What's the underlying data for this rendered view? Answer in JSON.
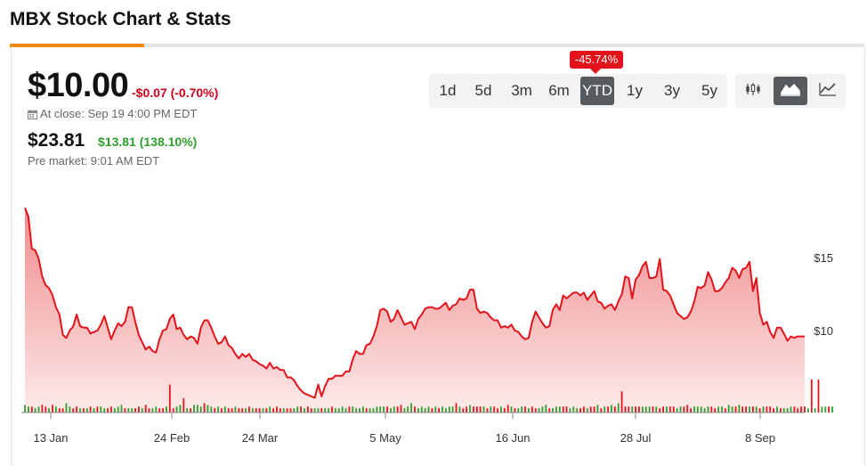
{
  "page": {
    "title": "MBX Stock Chart & Stats"
  },
  "quote": {
    "price": "$10.00",
    "change": "-$0.07 (-0.70%)",
    "close_time": "At close: Sep 19 4:00 PM EDT",
    "pre_price": "$23.81",
    "pre_change": "$13.81 (138.10%)",
    "pre_time": "Pre market: 9:01 AM EDT"
  },
  "range_selector": {
    "options": [
      "1d",
      "5d",
      "3m",
      "6m",
      "YTD",
      "1y",
      "3y",
      "5y"
    ],
    "selected": "YTD",
    "selected_change": "-45.74%"
  },
  "chart_types": [
    {
      "icon": "candlestick-icon",
      "active": false
    },
    {
      "icon": "area-chart-icon",
      "active": true
    },
    {
      "icon": "line-chart-icon",
      "active": false
    }
  ],
  "colors": {
    "accent": "#f0890c",
    "negative": "#d0021b",
    "positive": "#2e9e2e",
    "line": "#e3131b",
    "area_top": "#f08a8a",
    "area_bottom": "#fdeaea",
    "active_button": "#555b5e"
  },
  "chart_data": {
    "type": "area",
    "xlabel": "",
    "ylabel": "",
    "x_tick_labels": [
      "13 Jan",
      "24 Feb",
      "24 Mar",
      "5 May",
      "16 Jun",
      "28 Jul",
      "8 Sep"
    ],
    "y_tick_labels": [
      "$15",
      "$10"
    ],
    "y_ticks": [
      15,
      10
    ],
    "ylim": [
      5.1,
      18.8
    ],
    "grid": false,
    "legend": "none",
    "price_series": [
      18.4,
      17.8,
      15.6,
      15.5,
      14.9,
      13.7,
      13.1,
      12.9,
      12.4,
      11.6,
      11.1,
      9.7,
      9.5,
      10.0,
      10.3,
      11.1,
      10.3,
      10.2,
      10.2,
      9.8,
      9.9,
      10.0,
      10.4,
      11.0,
      10.2,
      9.4,
      10.0,
      10.5,
      10.3,
      10.6,
      11.6,
      11.6,
      10.6,
      9.7,
      9.2,
      8.7,
      8.9,
      8.6,
      8.5,
      9.4,
      10.0,
      10.1,
      10.8,
      11.1,
      10.1,
      10.2,
      9.7,
      9.4,
      9.6,
      9.5,
      9.1,
      10.2,
      10.7,
      10.7,
      10.2,
      9.6,
      9.1,
      9.2,
      9.6,
      9.0,
      8.8,
      8.4,
      8.1,
      8.4,
      8.2,
      8.4,
      8.0,
      7.9,
      7.7,
      7.6,
      7.4,
      7.8,
      7.4,
      7.5,
      7.3,
      7.3,
      6.8,
      6.8,
      6.6,
      6.2,
      5.9,
      5.7,
      5.6,
      5.5,
      5.4,
      6.3,
      5.5,
      6.2,
      6.7,
      6.7,
      6.9,
      6.9,
      6.9,
      7.2,
      7.2,
      8.0,
      8.6,
      8.4,
      8.4,
      9.0,
      9.1,
      9.6,
      10.3,
      11.4,
      11.5,
      11.3,
      10.6,
      10.8,
      11.4,
      10.9,
      10.4,
      10.5,
      10.6,
      10.1,
      10.8,
      11.1,
      11.5,
      11.6,
      11.6,
      11.5,
      11.5,
      11.7,
      11.9,
      11.4,
      11.7,
      11.8,
      12.2,
      12.1,
      12.2,
      12.8,
      12.8,
      11.5,
      11.2,
      11.3,
      11.2,
      10.9,
      10.7,
      10.7,
      10.2,
      10.3,
      10.2,
      10.4,
      10.0,
      9.9,
      9.6,
      9.4,
      9.5,
      10.6,
      11.3,
      10.9,
      10.5,
      10.2,
      10.3,
      11.4,
      11.8,
      11.4,
      12.4,
      12.2,
      12.4,
      12.6,
      12.6,
      12.4,
      12.6,
      12.1,
      12.4,
      12.7,
      12.0,
      11.9,
      11.5,
      11.7,
      11.8,
      11.4,
      12.0,
      12.5,
      13.7,
      13.6,
      12.2,
      13.5,
      13.8,
      14.4,
      14.7,
      13.6,
      13.6,
      13.7,
      14.9,
      12.8,
      12.7,
      12.4,
      11.8,
      11.2,
      11.0,
      10.8,
      10.9,
      11.3,
      12.0,
      13.0,
      12.9,
      13.1,
      14.0,
      13.5,
      12.7,
      12.7,
      12.9,
      13.3,
      13.6,
      14.3,
      14.1,
      13.6,
      14.2,
      14.3,
      14.7,
      12.7,
      13.6,
      11.2,
      10.4,
      10.6,
      9.9,
      9.5,
      10.2,
      10.2,
      9.8,
      9.3,
      9.6,
      9.5,
      9.6,
      9.6,
      9.6
    ],
    "volume_series": [
      4,
      3,
      3,
      2,
      3,
      4,
      3,
      2,
      4,
      3,
      2,
      2,
      5,
      3,
      2,
      3,
      2,
      2,
      2,
      3,
      2,
      3,
      3,
      2,
      2,
      3,
      2,
      3,
      4,
      2,
      2,
      2,
      2,
      3,
      2,
      4,
      2,
      2,
      3,
      2,
      2,
      3,
      2,
      2,
      3,
      4,
      3,
      2,
      2,
      4,
      4,
      3,
      5,
      4,
      3,
      2,
      3,
      2,
      3,
      2,
      2,
      3,
      2,
      2,
      2,
      3,
      2,
      2,
      2,
      2,
      2,
      3,
      2,
      3,
      2,
      2,
      2,
      2,
      2,
      3,
      3,
      2,
      3,
      2,
      2,
      2,
      2,
      2,
      2,
      3,
      2,
      2,
      3,
      2,
      3,
      3,
      2,
      2,
      3,
      2,
      2,
      2,
      3,
      3,
      3,
      3,
      2,
      3,
      3,
      4,
      2,
      3,
      5,
      3,
      2,
      3,
      2,
      3,
      2,
      3,
      2,
      3,
      2,
      3,
      3,
      5,
      3,
      2,
      3,
      4,
      3,
      3,
      3,
      3,
      2,
      3,
      3,
      2,
      3,
      2,
      4,
      3,
      2,
      2,
      3,
      3,
      2,
      3,
      2,
      2,
      3,
      4,
      2,
      2,
      3,
      3,
      3,
      3,
      2,
      3,
      2,
      2,
      3,
      2,
      3,
      3,
      4,
      2,
      3,
      3,
      4,
      3,
      5,
      2,
      3,
      3,
      3,
      3,
      3,
      3,
      3,
      3,
      3,
      3,
      2,
      3,
      3,
      3,
      3,
      2,
      3,
      3,
      4,
      2,
      3,
      3,
      3,
      2,
      3,
      3,
      2,
      3,
      3,
      2,
      4,
      3,
      3,
      4,
      3,
      3,
      3,
      3,
      3,
      2,
      3,
      3,
      3,
      2,
      3,
      2,
      2,
      2,
      3,
      3,
      2,
      3,
      3,
      2,
      3,
      2,
      2,
      3,
      3,
      3,
      3
    ],
    "volume_up": [
      true,
      true,
      false,
      true,
      true,
      false,
      false,
      true,
      false,
      true,
      false,
      false,
      true,
      true,
      false,
      false,
      true,
      false,
      true,
      false,
      true,
      false,
      true,
      true,
      false,
      false,
      true,
      true,
      true,
      false,
      true,
      true,
      false,
      false,
      true,
      false,
      false,
      true,
      true,
      false,
      false,
      true,
      false,
      false,
      true,
      true,
      false,
      true,
      false,
      true,
      true,
      true,
      false,
      true,
      true,
      false,
      true,
      false,
      true,
      false,
      false,
      true,
      false,
      false,
      true,
      false,
      true,
      false,
      false,
      true,
      false,
      true,
      false,
      false,
      false,
      true,
      false,
      false,
      true,
      true,
      false,
      true,
      false,
      false,
      true,
      true,
      false,
      true,
      true,
      false,
      true,
      true,
      true,
      true,
      false,
      true,
      true,
      true,
      true,
      false,
      true,
      true,
      true,
      true,
      true,
      false,
      true,
      true,
      false,
      false,
      true,
      true,
      true,
      false,
      true,
      true,
      true,
      true,
      false,
      true,
      false,
      true,
      true,
      true,
      true,
      false,
      true,
      false,
      false,
      true,
      false,
      false,
      false,
      true,
      false,
      true,
      false,
      false,
      true,
      false,
      false,
      true,
      false,
      true,
      true,
      false,
      true,
      false,
      false,
      true,
      true,
      true,
      false,
      true,
      true,
      true,
      false,
      false,
      true,
      true,
      true,
      false,
      false,
      true,
      false,
      false,
      true,
      false,
      true,
      false,
      true,
      false,
      true,
      false,
      false,
      false,
      true,
      false,
      false,
      true,
      true,
      true,
      false,
      true,
      false,
      false,
      true,
      false,
      false,
      true,
      true,
      false,
      false,
      false,
      true,
      true,
      true,
      true,
      true,
      false,
      false,
      true,
      true,
      false,
      true,
      true,
      false,
      true,
      false,
      false,
      true,
      false,
      true,
      false,
      true,
      false,
      false,
      false,
      true,
      false,
      true,
      true,
      true,
      false,
      false,
      false,
      false,
      true,
      false,
      true,
      false,
      true,
      true,
      false,
      true,
      false,
      false
    ],
    "volume_spikes": [
      {
        "index": 42,
        "value": 16,
        "up": false
      },
      {
        "index": 46,
        "value": 8,
        "up": false
      },
      {
        "index": 173,
        "value": 12,
        "up": false
      },
      {
        "index": 228,
        "value": 19,
        "up": false
      },
      {
        "index": 230,
        "value": 19,
        "up": false
      }
    ]
  }
}
